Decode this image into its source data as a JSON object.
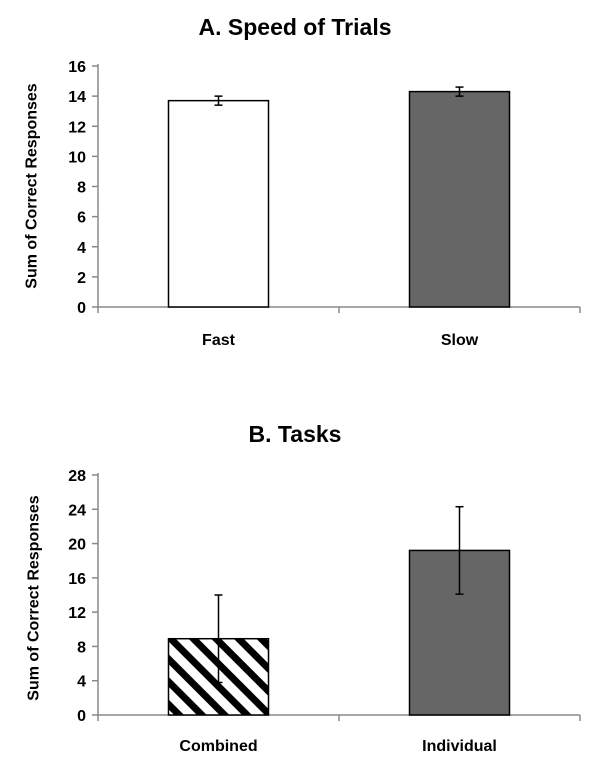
{
  "chart_data": [
    {
      "type": "bar",
      "title": "A.  Speed of Trials",
      "xlabel": "",
      "ylabel": "Sum of Correct Responses",
      "categories": [
        "Fast",
        "Slow"
      ],
      "values": [
        13.7,
        14.3
      ],
      "error": [
        0.3,
        0.3
      ],
      "ylim": [
        0,
        16
      ],
      "yticks": [
        0,
        2,
        4,
        6,
        8,
        10,
        12,
        14,
        16
      ],
      "bar_fills": [
        "#ffffff",
        "#666666"
      ],
      "bar_patterns": [
        "solid",
        "solid"
      ],
      "grid": false
    },
    {
      "type": "bar",
      "title": "B.  Tasks",
      "xlabel": "",
      "ylabel": "Sum of Correct Responses",
      "categories": [
        "Combined",
        "Individual"
      ],
      "values": [
        8.9,
        19.2
      ],
      "error": [
        5.1,
        5.1
      ],
      "ylim": [
        0,
        28
      ],
      "yticks": [
        0,
        4,
        8,
        12,
        16,
        20,
        24,
        28
      ],
      "bar_fills": [
        "#ffffff",
        "#666666"
      ],
      "bar_patterns": [
        "diagonal-stripes",
        "solid"
      ],
      "grid": false
    }
  ]
}
